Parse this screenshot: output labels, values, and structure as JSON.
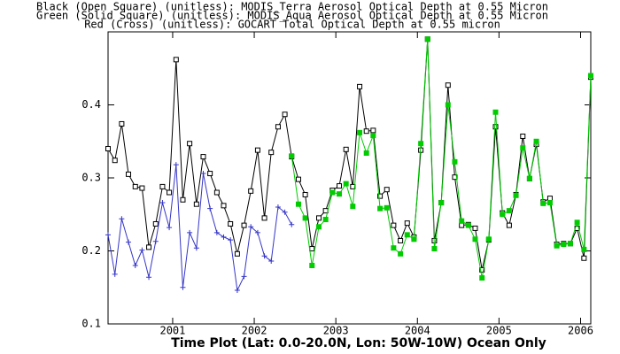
{
  "chart_data": {
    "type": "line",
    "legend_lines": true,
    "xlabel": "Time Plot (Lat: 0.0-20.0N, Lon: 50W-10W) Ocean Only",
    "x": [
      2000.208,
      2000.292,
      2000.375,
      2000.458,
      2000.542,
      2000.625,
      2000.708,
      2000.792,
      2000.875,
      2000.958,
      2001.042,
      2001.125,
      2001.208,
      2001.292,
      2001.375,
      2001.458,
      2001.542,
      2001.625,
      2001.708,
      2001.792,
      2001.875,
      2001.958,
      2002.042,
      2002.125,
      2002.208,
      2002.292,
      2002.375,
      2002.458,
      2002.542,
      2002.625,
      2002.708,
      2002.792,
      2002.875,
      2002.958,
      2003.042,
      2003.125,
      2003.208,
      2003.292,
      2003.375,
      2003.458,
      2003.542,
      2003.625,
      2003.708,
      2003.792,
      2003.875,
      2003.958,
      2004.042,
      2004.125,
      2004.208,
      2004.292,
      2004.375,
      2004.458,
      2004.542,
      2004.625,
      2004.708,
      2004.792,
      2004.875,
      2004.958,
      2005.042,
      2005.125,
      2005.208,
      2005.292,
      2005.375,
      2005.458,
      2005.542,
      2005.625,
      2005.708,
      2005.792,
      2005.875,
      2005.958,
      2006.042,
      2006.125
    ],
    "xlim": [
      2000.208,
      2006.125
    ],
    "xticks": [
      2001,
      2002,
      2003,
      2004,
      2005,
      2006
    ],
    "ylim": [
      0.1,
      0.5
    ],
    "yticks": [
      0.1,
      0.2,
      0.3,
      0.4
    ],
    "series": [
      {
        "name": "Black (Open Square) (unitless): MODIS_Terra Aerosol Optical Depth at 0.55 Micron",
        "color": "#000000",
        "marker": "square-open",
        "values": [
          0.34,
          0.324,
          0.374,
          0.305,
          0.288,
          0.286,
          0.205,
          0.237,
          0.288,
          0.28,
          0.462,
          0.27,
          0.347,
          0.264,
          0.329,
          0.306,
          0.28,
          0.262,
          0.237,
          0.196,
          0.235,
          0.282,
          0.338,
          0.245,
          0.335,
          0.37,
          0.387,
          0.329,
          0.298,
          0.277,
          0.203,
          0.245,
          0.255,
          0.283,
          0.289,
          0.339,
          0.288,
          0.425,
          0.364,
          0.365,
          0.275,
          0.284,
          0.235,
          0.214,
          0.238,
          0.219,
          0.338,
          0.49,
          0.214,
          0.266,
          0.427,
          0.301,
          0.235,
          0.236,
          0.231,
          0.174,
          0.215,
          0.37,
          0.252,
          0.235,
          0.277,
          0.357,
          0.299,
          0.346,
          0.267,
          0.272,
          0.209,
          0.21,
          0.21,
          0.231,
          0.19,
          0.438
        ]
      },
      {
        "name": "Green (Solid Square) (unitless): MODIS_Aqua Aerosol Optical Depth at 0.55 Micron",
        "color": "#00cc00",
        "marker": "square-filled",
        "values": [
          null,
          null,
          null,
          null,
          null,
          null,
          null,
          null,
          null,
          null,
          null,
          null,
          null,
          null,
          null,
          null,
          null,
          null,
          null,
          null,
          null,
          null,
          null,
          null,
          null,
          null,
          null,
          0.33,
          0.264,
          0.245,
          0.18,
          0.233,
          0.243,
          0.28,
          0.278,
          0.292,
          0.261,
          0.362,
          0.334,
          0.358,
          0.258,
          0.259,
          0.204,
          0.196,
          0.222,
          0.216,
          0.347,
          0.49,
          0.203,
          0.266,
          0.4,
          0.322,
          0.241,
          0.235,
          0.216,
          0.163,
          0.216,
          0.39,
          0.25,
          0.255,
          0.276,
          0.341,
          0.299,
          0.35,
          0.265,
          0.266,
          0.207,
          0.209,
          0.21,
          0.239,
          0.202,
          0.44
        ]
      },
      {
        "name": "Red (Cross) (unitless): GOCART Total Optical Depth at 0.55 micron",
        "color": "#3535c8",
        "marker": "cross",
        "values": [
          0.222,
          0.168,
          0.244,
          0.212,
          0.18,
          0.201,
          0.164,
          0.213,
          0.266,
          0.232,
          0.318,
          0.15,
          0.225,
          0.204,
          0.306,
          0.258,
          0.225,
          0.219,
          0.215,
          0.146,
          0.165,
          0.233,
          0.225,
          0.193,
          0.186,
          0.26,
          0.253,
          0.236,
          null,
          null,
          null,
          null,
          null,
          null,
          null,
          null,
          null,
          null,
          null,
          null,
          null,
          null,
          null,
          null,
          null,
          null,
          null,
          null,
          null,
          null,
          null,
          null,
          null,
          null,
          null,
          null,
          null,
          null,
          null,
          null,
          null,
          null,
          null,
          null,
          null,
          null,
          null,
          null,
          null,
          null,
          null,
          null
        ]
      }
    ]
  }
}
